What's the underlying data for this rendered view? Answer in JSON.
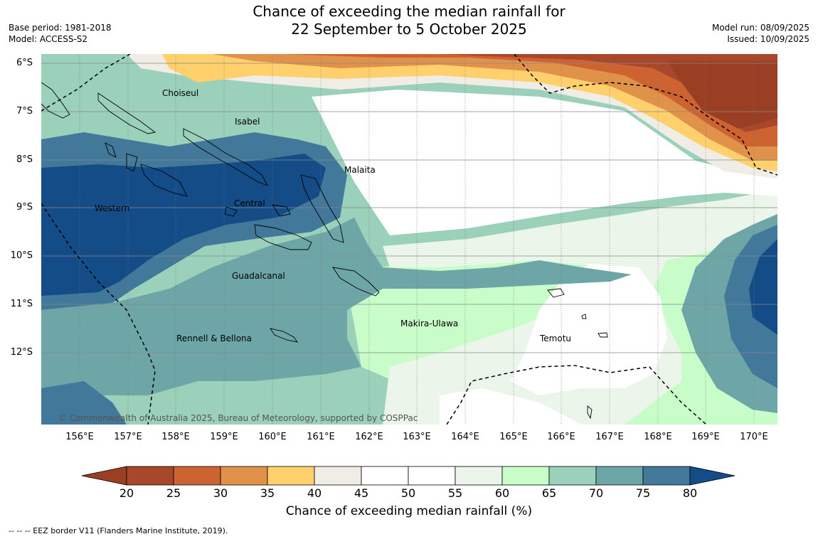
{
  "title_line1": "Chance of exceeding the median rainfall for",
  "title_line2": "22 September to 5 October 2025",
  "base_period": "Base period: 1981-2018",
  "model": "Model: ACCESS-S2",
  "model_run": "Model run: 08/09/2025",
  "issued": "Issued: 10/09/2025",
  "copyright": "© Commonwealth of Australia 2025, Bureau of Meteorology, supported by COSPPac",
  "lat_labels": [
    "6°S",
    "7°S",
    "8°S",
    "9°S",
    "10°S",
    "11°S",
    "12°S"
  ],
  "lon_labels": [
    "156°E",
    "157°E",
    "158°E",
    "159°E",
    "160°E",
    "161°E",
    "162°E",
    "163°E",
    "164°E",
    "165°E",
    "166°E",
    "167°E",
    "168°E",
    "169°E",
    "170°E"
  ],
  "regions": {
    "choiseul": "Choiseul",
    "isabel": "Isabel",
    "malaita": "Malaita",
    "western": "Western",
    "central": "Central",
    "guadalcanal": "Guadalcanal",
    "makira": "Makira-Ulawa",
    "rennell": "Rennell & Bellona",
    "temotu": "Temotu"
  },
  "colorbar": {
    "ticks": [
      "20",
      "25",
      "30",
      "35",
      "40",
      "45",
      "50",
      "55",
      "60",
      "65",
      "70",
      "75",
      "80"
    ],
    "colors": [
      "#a9472a",
      "#cc6330",
      "#e0914a",
      "#ffd06b",
      "#f0ede6",
      "#ffffff",
      "#ffffff",
      "#ebf5ea",
      "#c8fcc8",
      "#9bd0bb",
      "#6ea6a8",
      "#42789a"
    ],
    "under_color": "#9b3f24",
    "over_color": "#134c87",
    "label": "Chance of exceeding median rainfall (%)"
  },
  "footnote": "--  --  -- EEZ border V11 (Flanders Marine Institute, 2019)."
}
